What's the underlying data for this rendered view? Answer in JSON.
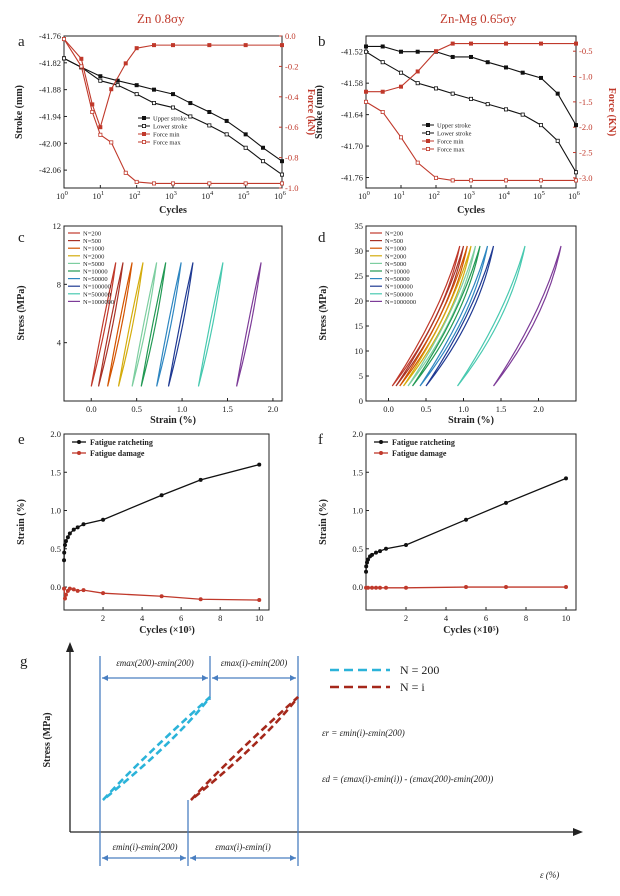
{
  "chart_data": [
    {
      "id": "a",
      "type": "line",
      "panel_letter": "a",
      "title": "Zn 0.8σy",
      "xlabel": "Cycles",
      "ylabel": "Stroke (mm)",
      "ylabel_right": "Force (kN)",
      "xscale": "log",
      "xlim": [
        1,
        1000000
      ],
      "ylim": [
        -42.1,
        -41.76
      ],
      "ylim_right": [
        -1.0,
        0.0
      ],
      "xticks": [
        "10^0",
        "10^1",
        "10^2",
        "10^3",
        "10^4",
        "10^5",
        "10^6"
      ],
      "yticks": [
        "-41.76",
        "-41.82",
        "-41.88",
        "-41.94",
        "-42.00",
        "-42.06"
      ],
      "yticks_right": [
        "0.0",
        "-0.2",
        "-0.4",
        "-0.6",
        "-0.8",
        "-1.0"
      ],
      "legend_position": "center",
      "series": [
        {
          "name": "Upper stroke",
          "axis": "left",
          "color": "#111111",
          "marker": "filled-square",
          "x": [
            1,
            3,
            10,
            30,
            100,
            300,
            1000,
            3000,
            10000,
            30000,
            100000,
            300000,
            1000000
          ],
          "y": [
            -41.81,
            -41.83,
            -41.85,
            -41.86,
            -41.87,
            -41.88,
            -41.89,
            -41.91,
            -41.93,
            -41.95,
            -41.98,
            -42.01,
            -42.04
          ]
        },
        {
          "name": "Lower stroke",
          "axis": "left",
          "color": "#111111",
          "marker": "open-square",
          "x": [
            1,
            3,
            10,
            30,
            100,
            300,
            1000,
            3000,
            10000,
            30000,
            100000,
            300000,
            1000000
          ],
          "y": [
            -41.81,
            -41.83,
            -41.86,
            -41.87,
            -41.89,
            -41.91,
            -41.92,
            -41.94,
            -41.96,
            -41.98,
            -42.01,
            -42.04,
            -42.07
          ]
        },
        {
          "name": "Force min",
          "axis": "right",
          "color": "#c0392b",
          "marker": "filled-square",
          "x": [
            1,
            3,
            6,
            10,
            20,
            50,
            100,
            300,
            1000,
            10000,
            100000,
            1000000
          ],
          "y": [
            -0.02,
            -0.15,
            -0.45,
            -0.6,
            -0.35,
            -0.18,
            -0.08,
            -0.06,
            -0.06,
            -0.06,
            -0.06,
            -0.06
          ]
        },
        {
          "name": "Force max",
          "axis": "right",
          "color": "#c0392b",
          "marker": "open-square",
          "x": [
            1,
            3,
            6,
            10,
            20,
            50,
            100,
            300,
            1000,
            10000,
            100000,
            1000000
          ],
          "y": [
            -0.02,
            -0.2,
            -0.5,
            -0.65,
            -0.7,
            -0.9,
            -0.96,
            -0.97,
            -0.97,
            -0.97,
            -0.97,
            -0.97
          ]
        }
      ]
    },
    {
      "id": "b",
      "type": "line",
      "panel_letter": "b",
      "title": "Zn-Mg 0.65σy",
      "xlabel": "Cycles",
      "ylabel": "Stroke (mm)",
      "ylabel_right": "Force (KN)",
      "xscale": "log",
      "xlim": [
        1,
        1000000
      ],
      "ylim": [
        -41.78,
        -41.49
      ],
      "ylim_right": [
        -3.2,
        -0.2
      ],
      "xticks": [
        "10^0",
        "10^1",
        "10^2",
        "10^3",
        "10^4",
        "10^5",
        "10^6"
      ],
      "yticks": [
        "-41.52",
        "-41.58",
        "-41.64",
        "-41.70",
        "-41.76"
      ],
      "yticks_right": [
        "-0.5",
        "-1.0",
        "-1.5",
        "-2.0",
        "-2.5",
        "-3.0"
      ],
      "legend_position": "center",
      "series": [
        {
          "name": "Upper stroke",
          "axis": "left",
          "color": "#111111",
          "marker": "filled-square",
          "x": [
            1,
            3,
            10,
            30,
            100,
            300,
            1000,
            3000,
            10000,
            30000,
            100000,
            300000,
            1000000
          ],
          "y": [
            -41.51,
            -41.51,
            -41.52,
            -41.52,
            -41.52,
            -41.53,
            -41.53,
            -41.54,
            -41.55,
            -41.56,
            -41.57,
            -41.6,
            -41.66
          ]
        },
        {
          "name": "Lower stroke",
          "axis": "left",
          "color": "#111111",
          "marker": "open-square",
          "x": [
            1,
            3,
            10,
            30,
            100,
            300,
            1000,
            3000,
            10000,
            30000,
            100000,
            300000,
            1000000
          ],
          "y": [
            -41.52,
            -41.54,
            -41.56,
            -41.58,
            -41.59,
            -41.6,
            -41.61,
            -41.62,
            -41.63,
            -41.64,
            -41.66,
            -41.69,
            -41.75
          ]
        },
        {
          "name": "Force min",
          "axis": "right",
          "color": "#c0392b",
          "marker": "filled-square",
          "x": [
            1,
            3,
            10,
            30,
            100,
            300,
            1000,
            10000,
            100000,
            1000000
          ],
          "y": [
            -1.3,
            -1.3,
            -1.2,
            -0.9,
            -0.5,
            -0.35,
            -0.35,
            -0.35,
            -0.35,
            -0.35
          ]
        },
        {
          "name": "Force max",
          "axis": "right",
          "color": "#c0392b",
          "marker": "open-square",
          "x": [
            1,
            3,
            10,
            30,
            100,
            300,
            1000,
            10000,
            100000,
            1000000
          ],
          "y": [
            -1.5,
            -1.7,
            -2.2,
            -2.7,
            -3.0,
            -3.05,
            -3.05,
            -3.05,
            -3.05,
            -3.05
          ]
        }
      ]
    },
    {
      "id": "c",
      "type": "line",
      "panel_letter": "c",
      "xlabel": "Strain (%)",
      "ylabel": "Stress (MPa)",
      "xlim": [
        -0.3,
        2.1
      ],
      "ylim": [
        0,
        12
      ],
      "xticks": [
        "0.0",
        "0.5",
        "1.0",
        "1.5",
        "2.0"
      ],
      "yticks": [
        "4",
        "8",
        "12"
      ],
      "legend_position": "top-left",
      "loop_stress": [
        1,
        9.5
      ],
      "series": [
        {
          "name": "N=200",
          "color": "#c0392b",
          "x0": 0.0
        },
        {
          "name": "N=500",
          "color": "#a93226",
          "x0": 0.08
        },
        {
          "name": "N=1000",
          "color": "#d35400",
          "x0": 0.18
        },
        {
          "name": "N=2000",
          "color": "#d4ac0d",
          "x0": 0.3
        },
        {
          "name": "N=5000",
          "color": "#7dcea0",
          "x0": 0.45
        },
        {
          "name": "N=10000",
          "color": "#229954",
          "x0": 0.55
        },
        {
          "name": "N=50000",
          "color": "#2e86c1",
          "x0": 0.72
        },
        {
          "name": "N=100000",
          "color": "#1f3a93",
          "x0": 0.85
        },
        {
          "name": "N=500000",
          "color": "#48c9b0",
          "x0": 1.18
        },
        {
          "name": "N=1000000",
          "color": "#7d3c98",
          "x0": 1.6
        }
      ]
    },
    {
      "id": "d",
      "type": "line",
      "panel_letter": "d",
      "xlabel": "Strain (%)",
      "ylabel": "Stress (MPa)",
      "xlim": [
        -0.3,
        2.5
      ],
      "ylim": [
        0,
        35
      ],
      "xticks": [
        "0.0",
        "0.5",
        "1.0",
        "1.5",
        "2.0"
      ],
      "yticks": [
        "0",
        "5",
        "10",
        "15",
        "20",
        "25",
        "30",
        "35"
      ],
      "legend_position": "top-left",
      "loop_stress": [
        3,
        31
      ],
      "series": [
        {
          "name": "N=200",
          "color": "#c0392b",
          "x0": 0.05
        },
        {
          "name": "N=500",
          "color": "#a93226",
          "x0": 0.1
        },
        {
          "name": "N=1000",
          "color": "#d35400",
          "x0": 0.15
        },
        {
          "name": "N=2000",
          "color": "#d4ac0d",
          "x0": 0.2
        },
        {
          "name": "N=5000",
          "color": "#7dcea0",
          "x0": 0.26
        },
        {
          "name": "N=10000",
          "color": "#229954",
          "x0": 0.32
        },
        {
          "name": "N=50000",
          "color": "#2e86c1",
          "x0": 0.42
        },
        {
          "name": "N=100000",
          "color": "#1f3a93",
          "x0": 0.5
        },
        {
          "name": "N=500000",
          "color": "#48c9b0",
          "x0": 0.92
        },
        {
          "name": "N=1000000",
          "color": "#7d3c98",
          "x0": 1.4
        }
      ]
    },
    {
      "id": "e",
      "type": "line",
      "panel_letter": "e",
      "xlabel": "Cycles (×10⁵)",
      "ylabel": "Strain (%)",
      "xlim": [
        0,
        10.5
      ],
      "ylim": [
        -0.3,
        2.0
      ],
      "xticks": [
        "2",
        "4",
        "6",
        "8",
        "10"
      ],
      "yticks": [
        "0.0",
        "0.5",
        "1.0",
        "1.5",
        "2.0"
      ],
      "legend_position": "top-left",
      "series": [
        {
          "name": "Fatigue ratcheting",
          "color": "#111111",
          "x": [
            0.002,
            0.01,
            0.05,
            0.1,
            0.2,
            0.3,
            0.5,
            0.7,
            1,
            2,
            5,
            7,
            10
          ],
          "y": [
            0.35,
            0.45,
            0.55,
            0.6,
            0.65,
            0.7,
            0.75,
            0.78,
            0.82,
            0.88,
            1.2,
            1.4,
            1.6
          ]
        },
        {
          "name": "Fatigue damage",
          "color": "#c0392b",
          "x": [
            0.002,
            0.05,
            0.1,
            0.2,
            0.3,
            0.5,
            0.7,
            1,
            2,
            5,
            7,
            10
          ],
          "y": [
            -0.02,
            -0.15,
            -0.1,
            -0.05,
            -0.02,
            -0.03,
            -0.05,
            -0.04,
            -0.08,
            -0.12,
            -0.16,
            -0.17
          ]
        }
      ]
    },
    {
      "id": "f",
      "type": "line",
      "panel_letter": "f",
      "xlabel": "Cycles (×10⁵)",
      "ylabel": "Strain (%)",
      "xlim": [
        0,
        10.5
      ],
      "ylim": [
        -0.3,
        2.0
      ],
      "xticks": [
        "2",
        "4",
        "6",
        "8",
        "10"
      ],
      "yticks": [
        "0.0",
        "0.5",
        "1.0",
        "1.5",
        "2.0"
      ],
      "legend_position": "top-left",
      "series": [
        {
          "name": "Fatigue ratcheting",
          "color": "#111111",
          "x": [
            0.002,
            0.01,
            0.05,
            0.1,
            0.2,
            0.3,
            0.5,
            0.7,
            1,
            2,
            5,
            7,
            10
          ],
          "y": [
            0.2,
            0.27,
            0.32,
            0.36,
            0.4,
            0.42,
            0.45,
            0.47,
            0.5,
            0.55,
            0.88,
            1.1,
            1.42
          ]
        },
        {
          "name": "Fatigue damage",
          "color": "#c0392b",
          "x": [
            0.002,
            0.1,
            0.3,
            0.5,
            0.7,
            1,
            2,
            5,
            7,
            10
          ],
          "y": [
            -0.01,
            -0.01,
            -0.01,
            -0.01,
            -0.01,
            -0.01,
            -0.01,
            0.0,
            0.0,
            0.0
          ]
        }
      ]
    }
  ],
  "schematic_g": {
    "panel_letter": "g",
    "ylabel": "Stress (MPa)",
    "xlabel": "ε (%)",
    "top_labels": [
      "εmax(200)-εmin(200)",
      "εmax(i)-εmin(200)"
    ],
    "bottom_labels": [
      "εmin(i)-εmin(200)",
      "εmax(i)-εmin(i)"
    ],
    "legend": [
      {
        "label": "N = 200",
        "color": "#2bb3d9"
      },
      {
        "label": "N = i",
        "color": "#a5281b"
      }
    ],
    "equation_r": "εr = εmin(i)-εmin(200)",
    "equation_d": "εd = (εmax(i)-εmin(i)) - (εmax(200)-εmin(200))"
  }
}
